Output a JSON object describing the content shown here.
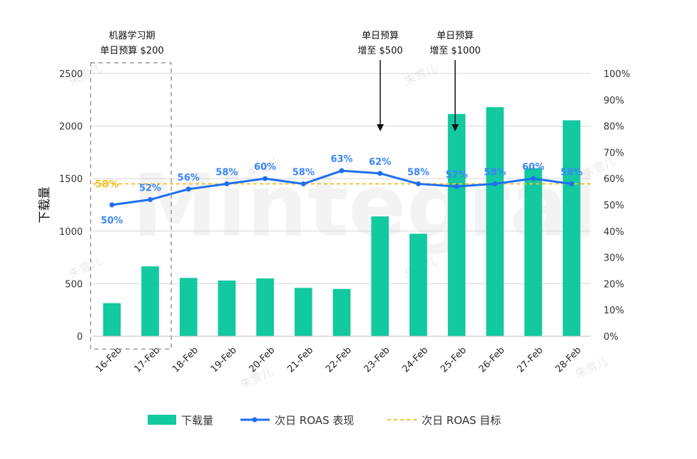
{
  "chart_data": {
    "type": "bar+line",
    "categories": [
      "16-Feb",
      "17-Feb",
      "18-Feb",
      "19-Feb",
      "20-Feb",
      "21-Feb",
      "22-Feb",
      "23-Feb",
      "24-Feb",
      "25-Feb",
      "26-Feb",
      "27-Feb",
      "28-Feb"
    ],
    "series": [
      {
        "name": "下载量",
        "type": "bar",
        "axis": "left",
        "color": "#12c9a0",
        "values": [
          315,
          665,
          555,
          530,
          550,
          460,
          450,
          1140,
          975,
          2115,
          2180,
          1600,
          2055
        ]
      },
      {
        "name": "次日 ROAS 表现",
        "type": "line",
        "axis": "right",
        "color": "#1e6ff0",
        "values": [
          50,
          52,
          56,
          58,
          60,
          58,
          63,
          62,
          58,
          57,
          58,
          60,
          58
        ],
        "labels": [
          "50%",
          "52%",
          "56%",
          "58%",
          "60%",
          "58%",
          "63%",
          "62%",
          "58%",
          "57%",
          "58%",
          "60%",
          "58%"
        ]
      },
      {
        "name": "次日 ROAS 目标",
        "type": "line-dashed",
        "axis": "right",
        "color": "#f2c230",
        "value": 58,
        "label": "58%"
      }
    ],
    "ylabel": "下载量",
    "ylim": [
      0,
      2500
    ],
    "yticks": [
      "0",
      "500",
      "1000",
      "1500",
      "2000",
      "2500"
    ],
    "y2lim": [
      0,
      100
    ],
    "y2ticks": [
      "0%",
      "10%",
      "20%",
      "30%",
      "40%",
      "50%",
      "60%",
      "70%",
      "80%",
      "90%",
      "100%"
    ],
    "annotations": [
      {
        "lines": [
          "机器学习期",
          "单日预算 $200"
        ],
        "target": "16-Feb..17-Feb"
      },
      {
        "lines": [
          "单日预算",
          "增至 $500"
        ],
        "target": "23-Feb"
      },
      {
        "lines": [
          "单日预算",
          "增至 $1000"
        ],
        "target": "25-Feb"
      }
    ],
    "legend": [
      "下载量",
      "次日 ROAS 表现",
      "次日 ROAS 目标"
    ],
    "legend_position": "bottom"
  },
  "watermarks": [
    "朱雪儿",
    "Mintegral"
  ]
}
